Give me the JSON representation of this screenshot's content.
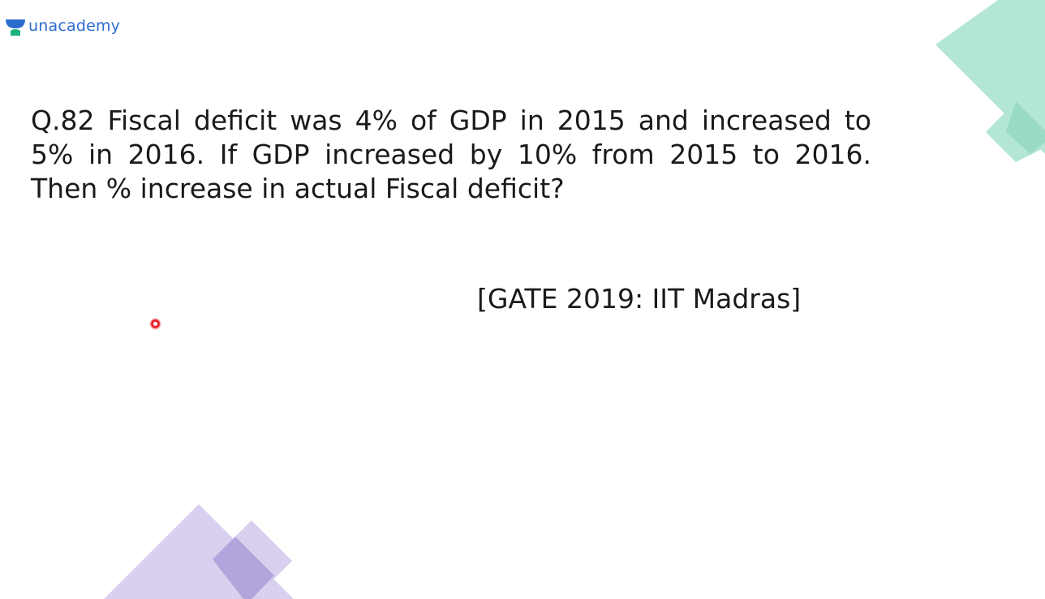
{
  "logo": {
    "text": "unacademy",
    "icon": "unacademy-logo-icon",
    "colors": {
      "text": "#2b6ccf",
      "cup_top": "#2b6ccf",
      "cup_bottom": "#1bb37a"
    }
  },
  "question": {
    "text": "Q.82 Fiscal deficit was 4% of GDP in 2015 and increased to 5% in 2016. If GDP increased by 10% from 2015 to 2016. Then % increase in actual Fiscal deficit?"
  },
  "source": {
    "text": "[GATE 2019: IIT Madras]"
  },
  "decorations": {
    "top_right_color": "#a6e2cf",
    "bottom_left_color": "#c6b9e6",
    "overlap_bottom_left": "#a895d6"
  },
  "pointer": {
    "color": "#e8202a"
  }
}
